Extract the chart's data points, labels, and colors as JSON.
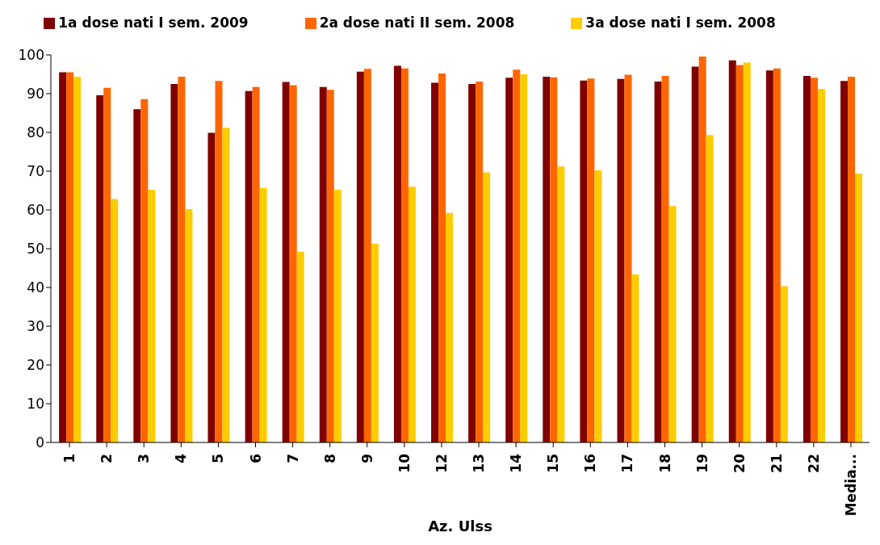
{
  "chart_data": {
    "type": "bar",
    "xlabel": "Az. Ulss",
    "categories": [
      "1",
      "2",
      "3",
      "4",
      "5",
      "6",
      "7",
      "8",
      "9",
      "10",
      "12",
      "13",
      "14",
      "15",
      "16",
      "17",
      "18",
      "19",
      "20",
      "21",
      "22",
      "Media..."
    ],
    "series": [
      {
        "name": "1a dose nati I sem. 2009",
        "color": "#800000",
        "values": [
          95.5,
          89.6,
          86,
          92.5,
          79.9,
          90.7,
          93,
          91.7,
          95.7,
          97.2,
          92.8,
          92.5,
          94.1,
          94.4,
          93.4,
          93.8,
          93.1,
          97,
          98.6,
          96,
          94.6,
          93.3
        ]
      },
      {
        "name": "2a dose nati II sem. 2008",
        "color": "#ff6600",
        "values": [
          95.5,
          91.5,
          88.6,
          94.4,
          93.3,
          91.7,
          92.2,
          91,
          96.4,
          96.5,
          95.2,
          93.1,
          96.2,
          94.2,
          93.9,
          94.9,
          94.6,
          99.6,
          97.4,
          96.5,
          94.1,
          94.4
        ]
      },
      {
        "name": "3a dose nati I sem. 2008",
        "color": "#ffcc00",
        "values": [
          94.4,
          62.8,
          65.2,
          60.2,
          81.2,
          65.7,
          49.2,
          65.2,
          51.3,
          66,
          59.2,
          69.7,
          95,
          71.2,
          70.2,
          43.4,
          61,
          79.3,
          98,
          40.3,
          91.2,
          69.4
        ]
      }
    ],
    "ylim": [
      0,
      100
    ],
    "yticks": [
      0,
      10,
      20,
      30,
      40,
      50,
      60,
      70,
      80,
      90,
      100
    ],
    "grid": false,
    "legend": "top"
  }
}
